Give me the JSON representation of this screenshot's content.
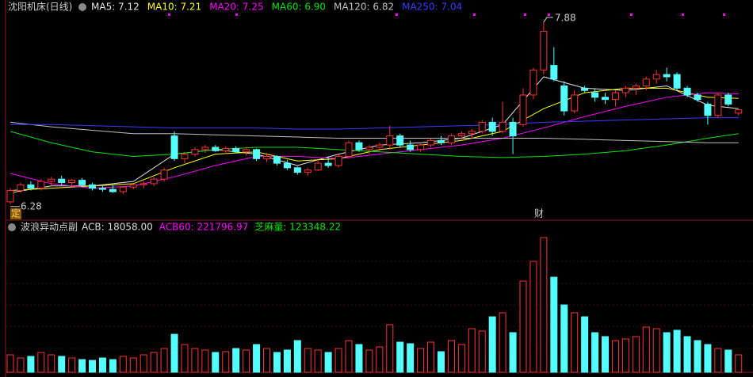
{
  "chart_data": [
    {
      "type": "candlestick",
      "title": "沈阳机床(日线)",
      "up_color": "#ff3232",
      "down_color": "#54ffff",
      "ylim": [
        6.16,
        7.95
      ],
      "candles": [
        [
          6.3,
          6.42,
          6.28,
          6.4
        ],
        [
          6.4,
          6.47,
          6.38,
          6.45
        ],
        [
          6.45,
          6.48,
          6.4,
          6.42
        ],
        [
          6.42,
          6.5,
          6.4,
          6.48
        ],
        [
          6.48,
          6.52,
          6.44,
          6.5
        ],
        [
          6.5,
          6.53,
          6.45,
          6.47
        ],
        [
          6.47,
          6.5,
          6.44,
          6.49
        ],
        [
          6.49,
          6.51,
          6.43,
          6.45
        ],
        [
          6.45,
          6.47,
          6.4,
          6.42
        ],
        [
          6.42,
          6.44,
          6.39,
          6.41
        ],
        [
          6.41,
          6.45,
          6.38,
          6.39
        ],
        [
          6.39,
          6.44,
          6.37,
          6.43
        ],
        [
          6.43,
          6.46,
          6.41,
          6.45
        ],
        [
          6.45,
          6.48,
          6.42,
          6.46
        ],
        [
          6.46,
          6.52,
          6.44,
          6.5
        ],
        [
          6.5,
          6.6,
          6.48,
          6.58
        ],
        [
          6.88,
          6.92,
          6.66,
          6.68
        ],
        [
          6.68,
          6.74,
          6.64,
          6.72
        ],
        [
          6.72,
          6.78,
          6.7,
          6.76
        ],
        [
          6.76,
          6.8,
          6.73,
          6.78
        ],
        [
          6.78,
          6.8,
          6.74,
          6.75
        ],
        [
          6.75,
          6.79,
          6.72,
          6.77
        ],
        [
          6.77,
          6.79,
          6.73,
          6.74
        ],
        [
          6.74,
          6.78,
          6.71,
          6.76
        ],
        [
          6.76,
          6.77,
          6.66,
          6.68
        ],
        [
          6.68,
          6.73,
          6.65,
          6.7
        ],
        [
          6.7,
          6.71,
          6.62,
          6.64
        ],
        [
          6.64,
          6.67,
          6.58,
          6.6
        ],
        [
          6.6,
          6.61,
          6.54,
          6.56
        ],
        [
          6.56,
          6.6,
          6.53,
          6.58
        ],
        [
          6.58,
          6.66,
          6.57,
          6.64
        ],
        [
          6.64,
          6.7,
          6.6,
          6.62
        ],
        [
          6.62,
          6.72,
          6.6,
          6.7
        ],
        [
          6.7,
          6.84,
          6.68,
          6.82
        ],
        [
          6.82,
          6.84,
          6.74,
          6.76
        ],
        [
          6.76,
          6.8,
          6.72,
          6.78
        ],
        [
          6.78,
          6.82,
          6.74,
          6.8
        ],
        [
          6.8,
          6.97,
          6.76,
          6.88
        ],
        [
          6.88,
          6.9,
          6.78,
          6.8
        ],
        [
          6.8,
          6.84,
          6.74,
          6.76
        ],
        [
          6.76,
          6.82,
          6.74,
          6.8
        ],
        [
          6.8,
          6.86,
          6.78,
          6.84
        ],
        [
          6.84,
          6.88,
          6.8,
          6.82
        ],
        [
          6.82,
          6.9,
          6.8,
          6.88
        ],
        [
          6.88,
          6.92,
          6.84,
          6.9
        ],
        [
          6.9,
          6.94,
          6.86,
          6.92
        ],
        [
          6.92,
          7.02,
          6.9,
          7.0
        ],
        [
          7.0,
          7.04,
          6.88,
          6.92
        ],
        [
          6.92,
          7.18,
          6.9,
          7.0
        ],
        [
          7.0,
          7.04,
          6.72,
          6.88
        ],
        [
          6.98,
          7.3,
          6.96,
          7.24
        ],
        [
          7.24,
          7.48,
          7.2,
          7.46
        ],
        [
          7.46,
          7.88,
          7.42,
          7.8
        ],
        [
          7.5,
          7.66,
          7.36,
          7.38
        ],
        [
          7.32,
          7.36,
          7.06,
          7.1
        ],
        [
          7.1,
          7.28,
          7.08,
          7.24
        ],
        [
          7.3,
          7.32,
          7.26,
          7.28
        ],
        [
          7.26,
          7.3,
          7.18,
          7.22
        ],
        [
          7.22,
          7.26,
          7.16,
          7.2
        ],
        [
          7.2,
          7.28,
          7.14,
          7.26
        ],
        [
          7.26,
          7.32,
          7.22,
          7.3
        ],
        [
          7.3,
          7.34,
          7.24,
          7.32
        ],
        [
          7.32,
          7.4,
          7.28,
          7.38
        ],
        [
          7.38,
          7.46,
          7.34,
          7.42
        ],
        [
          7.42,
          7.48,
          7.36,
          7.4
        ],
        [
          7.42,
          7.44,
          7.28,
          7.3
        ],
        [
          7.3,
          7.32,
          7.22,
          7.24
        ],
        [
          7.24,
          7.26,
          7.18,
          7.2
        ],
        [
          7.16,
          7.18,
          6.98,
          7.06
        ],
        [
          7.06,
          7.26,
          7.04,
          7.24
        ],
        [
          7.24,
          7.26,
          7.14,
          7.16
        ],
        [
          7.08,
          7.12,
          7.06,
          7.11
        ]
      ],
      "ma_x": [
        0,
        4,
        8,
        12,
        16,
        20,
        24,
        28,
        32,
        36,
        40,
        44,
        48,
        52,
        56,
        60,
        64,
        68,
        71
      ],
      "series": [
        {
          "label": "MA5: 7.12",
          "color": "#e6e6e6",
          "values": [
            6.38,
            6.44,
            6.44,
            6.48,
            6.72,
            6.76,
            6.72,
            6.62,
            6.72,
            6.8,
            6.82,
            6.86,
            6.98,
            7.4,
            7.3,
            7.28,
            7.32,
            7.15,
            7.12
          ]
        },
        {
          "label": "MA10: 7.21",
          "color": "#ffff00",
          "values": [
            6.4,
            6.42,
            6.44,
            6.46,
            6.6,
            6.72,
            6.74,
            6.66,
            6.68,
            6.76,
            6.8,
            6.84,
            6.92,
            7.12,
            7.26,
            7.3,
            7.3,
            7.22,
            7.21
          ]
        },
        {
          "label": "MA20: 7.25",
          "color": "#ff00ff",
          "values": [
            6.55,
            6.46,
            6.42,
            6.44,
            6.52,
            6.62,
            6.7,
            6.7,
            6.68,
            6.72,
            6.76,
            6.8,
            6.86,
            6.95,
            7.05,
            7.14,
            7.22,
            7.26,
            7.25
          ]
        },
        {
          "label": "MA60: 6.90",
          "color": "#00e600",
          "values": [
            6.92,
            6.82,
            6.74,
            6.7,
            6.72,
            6.76,
            6.78,
            6.78,
            6.76,
            6.74,
            6.72,
            6.7,
            6.69,
            6.7,
            6.72,
            6.75,
            6.8,
            6.86,
            6.9
          ]
        },
        {
          "label": "MA120: 6.82",
          "color": "#c0c0c0",
          "values": [
            7.0,
            6.96,
            6.93,
            6.9,
            6.9,
            6.89,
            6.88,
            6.87,
            6.86,
            6.86,
            6.86,
            6.86,
            6.86,
            6.86,
            6.85,
            6.84,
            6.83,
            6.82,
            6.82
          ]
        },
        {
          "label": "MA250: 7.04",
          "color": "#3b3bff",
          "values": [
            6.98,
            6.98,
            6.97,
            6.96,
            6.95,
            6.95,
            6.95,
            6.94,
            6.94,
            6.95,
            6.96,
            6.97,
            6.98,
            7.0,
            7.01,
            7.02,
            7.03,
            7.04,
            7.04
          ]
        }
      ],
      "high_label": "7.88",
      "low_label": "6.28",
      "markers": [
        "定",
        "财"
      ]
    },
    {
      "type": "bar",
      "title": "波浪异动点副",
      "indicators": [
        {
          "label": "ACB: 18058.00",
          "color": "#dddddd"
        },
        {
          "label": "ACB60: 221796.97",
          "color": "#ff00ff"
        },
        {
          "label": "芝麻量: 123348.22",
          "color": "#00e600"
        }
      ],
      "ylim": [
        0,
        180
      ],
      "values": [
        22,
        18,
        20,
        25,
        22,
        20,
        18,
        16,
        15,
        18,
        16,
        20,
        18,
        22,
        25,
        30,
        48,
        35,
        30,
        28,
        25,
        26,
        30,
        28,
        35,
        30,
        25,
        28,
        40,
        30,
        28,
        25,
        30,
        40,
        35,
        28,
        32,
        60,
        38,
        36,
        30,
        38,
        26,
        40,
        35,
        55,
        52,
        70,
        75,
        50,
        115,
        140,
        170,
        120,
        85,
        75,
        70,
        50,
        45,
        40,
        42,
        45,
        57,
        55,
        50,
        53,
        45,
        40,
        35,
        30,
        28,
        22
      ]
    }
  ]
}
